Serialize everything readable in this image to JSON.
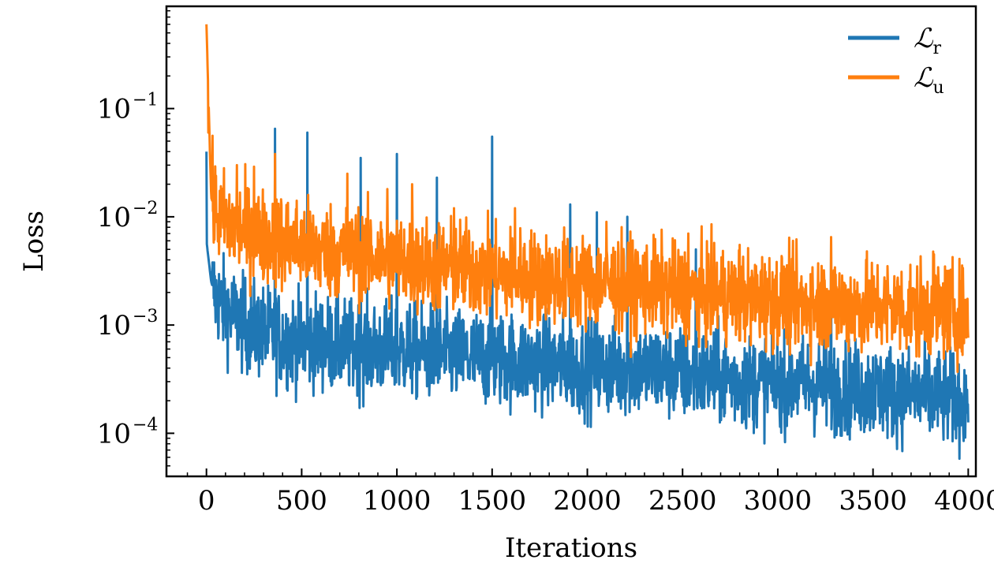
{
  "chart_data": {
    "type": "line",
    "xlabel": "Iterations",
    "ylabel": "Loss",
    "yscale": "log",
    "xlim": [
      -210,
      4040
    ],
    "ylim": [
      4e-05,
      0.88
    ],
    "xticks": [
      0,
      500,
      1000,
      1500,
      2000,
      2500,
      3000,
      3500,
      4000
    ],
    "yticks": [
      {
        "value": 0.1,
        "base": "10",
        "exp": "−1"
      },
      {
        "value": 0.01,
        "base": "10",
        "exp": "−2"
      },
      {
        "value": 0.001,
        "base": "10",
        "exp": "−3"
      },
      {
        "value": 0.0001,
        "base": "10",
        "exp": "−4"
      }
    ],
    "legend": {
      "placement": "top-right",
      "entries": [
        {
          "symbol": "ℒ",
          "sub": "r",
          "color": "#1f77b4"
        },
        {
          "symbol": "ℒ",
          "sub": "u",
          "color": "#ff7f0e"
        }
      ]
    },
    "series": [
      {
        "name": "ℒr",
        "color": "#1f77b4",
        "x": [
          0,
          25,
          50,
          100,
          150,
          200,
          300,
          400,
          500,
          600,
          700,
          800,
          900,
          1000,
          1200,
          1400,
          1500,
          1700,
          1800,
          2000,
          2200,
          2400,
          2500,
          2700,
          2800,
          3000,
          3200,
          3400,
          3500,
          3700,
          3800,
          4000
        ],
        "trend": [
          0.006,
          0.0025,
          0.0018,
          0.0014,
          0.0012,
          0.001,
          0.00085,
          0.00075,
          0.0007,
          0.0007,
          0.00065,
          0.0006,
          0.0006,
          0.0006,
          0.00055,
          0.0005,
          0.0005,
          0.00045,
          0.00045,
          0.0004,
          0.0004,
          0.00038,
          0.00035,
          0.00033,
          0.0003,
          0.0003,
          0.00028,
          0.00026,
          0.00025,
          0.00023,
          0.00022,
          0.0002
        ],
        "spikes": [
          [
            0,
            0.04
          ],
          [
            360,
            0.065
          ],
          [
            530,
            0.06
          ],
          [
            810,
            0.035
          ],
          [
            1000,
            0.038
          ],
          [
            1210,
            0.023
          ],
          [
            1500,
            0.055
          ],
          [
            1910,
            0.013
          ],
          [
            2050,
            0.011
          ],
          [
            2210,
            0.01
          ],
          [
            2570,
            0.005
          ],
          [
            3280,
            0.006
          ]
        ]
      },
      {
        "name": "ℒu",
        "color": "#ff7f0e",
        "x": [
          0,
          25,
          50,
          100,
          150,
          200,
          300,
          400,
          500,
          600,
          700,
          800,
          900,
          1000,
          1200,
          1400,
          1500,
          1700,
          1800,
          2000,
          2200,
          2400,
          2500,
          2700,
          2800,
          3000,
          3200,
          3400,
          3500,
          3700,
          3800,
          4000
        ],
        "trend": [
          0.6,
          0.015,
          0.011,
          0.009,
          0.008,
          0.0075,
          0.0065,
          0.006,
          0.0055,
          0.005,
          0.0048,
          0.0045,
          0.0042,
          0.004,
          0.0035,
          0.0033,
          0.003,
          0.0028,
          0.0027,
          0.0025,
          0.0023,
          0.0022,
          0.002,
          0.0019,
          0.0018,
          0.0017,
          0.0016,
          0.0015,
          0.0015,
          0.0014,
          0.0014,
          0.0013
        ],
        "spikes": [
          [
            0,
            0.6
          ],
          [
            10,
            0.06
          ],
          [
            160,
            0.03
          ],
          [
            250,
            0.029
          ],
          [
            360,
            0.038
          ],
          [
            740,
            0.025
          ],
          [
            950,
            0.018
          ],
          [
            1080,
            0.02
          ],
          [
            1300,
            0.012
          ],
          [
            1620,
            0.012
          ],
          [
            2100,
            0.009
          ],
          [
            2530,
            0.007
          ],
          [
            2800,
            0.0055
          ],
          [
            3280,
            0.0065
          ],
          [
            3820,
            0.0045
          ]
        ]
      }
    ]
  }
}
